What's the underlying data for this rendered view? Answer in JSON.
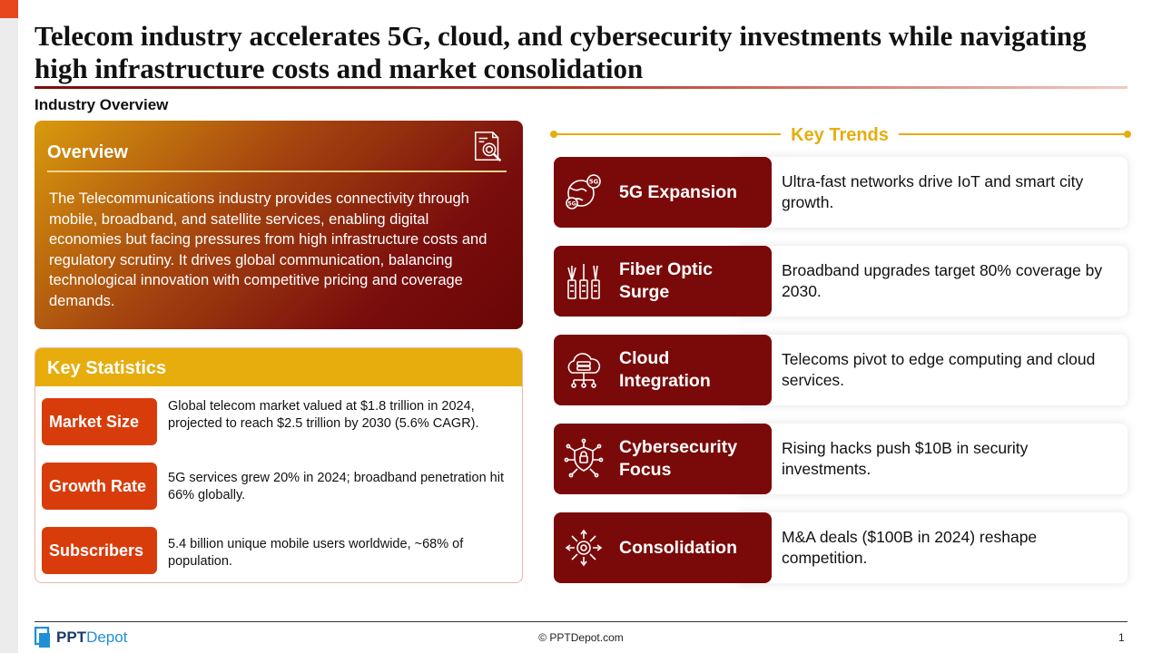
{
  "slide": {
    "title": "Telecom industry accelerates 5G, cloud, and cybersecurity investments while navigating high infrastructure costs and market consolidation",
    "section_label": "Industry Overview"
  },
  "overview": {
    "title": "Overview",
    "icon": "document-search-icon",
    "text": "The Telecommunications industry provides connectivity through mobile, broadband, and satellite services, enabling digital economies but facing pressures from high infrastructure costs and regulatory scrutiny. It drives global communication, balancing technological innovation with competitive pricing and coverage demands."
  },
  "key_statistics": {
    "title": "Key Statistics",
    "items": [
      {
        "label": "Market Size",
        "text": "Global telecom market valued at $1.8 trillion in 2024, projected to reach $2.5 trillion by 2030 (5.6% CAGR)."
      },
      {
        "label": "Growth Rate",
        "text": "5G services grew 20% in 2024; broadband penetration hit 66% globally."
      },
      {
        "label": "Subscribers",
        "text": "5.4 billion unique mobile users worldwide, ~68% of population."
      }
    ]
  },
  "key_trends": {
    "title": "Key Trends",
    "items": [
      {
        "name": "5G Expansion",
        "icon": "5g-globe-icon",
        "text": "Ultra-fast networks drive IoT and smart city growth."
      },
      {
        "name": "Fiber Optic Surge",
        "icon": "fiber-optic-icon",
        "text": "Broadband upgrades target 80% coverage by 2030."
      },
      {
        "name": "Cloud Integration",
        "icon": "cloud-server-icon",
        "text": "Telecoms pivot to edge computing and cloud services."
      },
      {
        "name": "Cybersecurity Focus",
        "icon": "shield-circuit-icon",
        "text": "Rising hacks push $10B in security investments."
      },
      {
        "name": "Consolidation",
        "icon": "consolidation-icon",
        "text": "M&A deals ($100B in 2024) reshape competition."
      }
    ]
  },
  "footer": {
    "logo_ppt": "PPT",
    "logo_depot": "Depot",
    "copyright": "© PPTDepot.com",
    "page_number": "1"
  },
  "colors": {
    "accent_orange": "#e8461c",
    "dark_red": "#7a0a0a",
    "gold": "#e6ad0c",
    "stat_red": "#d93c0b"
  }
}
